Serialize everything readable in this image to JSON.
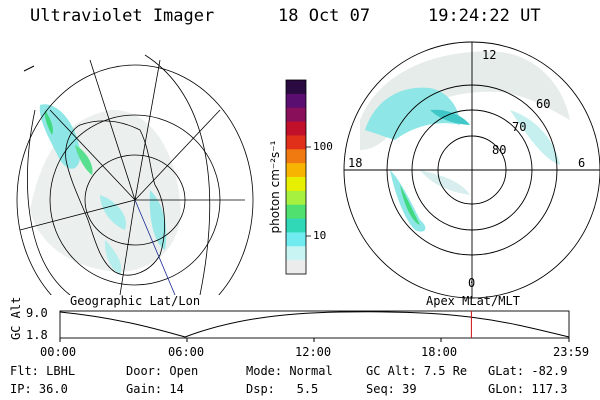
{
  "header": {
    "title": "Ultraviolet Imager",
    "date": "18 Oct 07",
    "time": "19:24:22 UT"
  },
  "geo_panel": {
    "label": "Geographic Lat/Lon"
  },
  "polar_panel": {
    "label": "Apex MLat/MLT",
    "mlt_labels": {
      "top": "12",
      "left": "18",
      "right": "6",
      "bottom": "0"
    },
    "mlat_labels": [
      "60",
      "70",
      "80"
    ]
  },
  "colorbar": {
    "unit_label": "photon cm⁻²s⁻¹",
    "ticks": [
      "100",
      "10"
    ],
    "colors": [
      "#2a0a40",
      "#5a0f70",
      "#8a0f5a",
      "#c0102a",
      "#e0301a",
      "#f07a10",
      "#f7b400",
      "#e6f000",
      "#a6f040",
      "#50e070",
      "#30d8b8",
      "#70ecf0",
      "#c8f4f4",
      "#ececec"
    ]
  },
  "alt_plot": {
    "ylabel": "GC Alt",
    "y_ticks": [
      "9.0",
      "1.8"
    ],
    "x_ticks": [
      "00:00",
      "06:00",
      "12:00",
      "18:00",
      "23:59"
    ],
    "marker_hour": 19.4,
    "marker_color": "#d01010"
  },
  "info": {
    "filter_label": "Flt:",
    "filter_value": "LBHL",
    "ip_label": "IP:",
    "ip_value": "36.0",
    "door_label": "Door:",
    "door_value": "Open",
    "gain_label": "Gain:",
    "gain_value": "14",
    "mode_label": "Mode:",
    "mode_value": "Normal",
    "dsp_label": "Dsp:",
    "dsp_value": "5.5",
    "gcalt_label": "GC Alt:",
    "gcalt_value": "7.5 Re",
    "seq_label": "Seq:",
    "seq_value": "39",
    "glat_label": "GLat:",
    "glat_value": "-82.9",
    "glon_label": "GLon:",
    "glon_value": "117.3"
  }
}
